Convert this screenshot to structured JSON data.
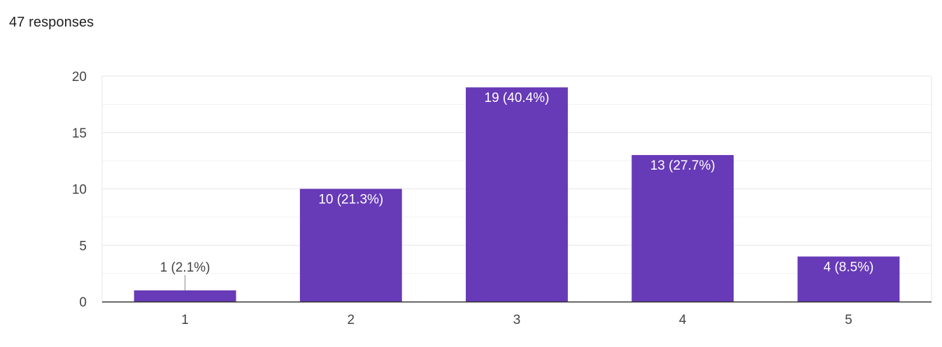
{
  "summary": {
    "responses_label": "47 responses"
  },
  "colors": {
    "bar": "#673ab7",
    "label_inside": "#ffffff",
    "label_outside": "#444444",
    "gridline": "#f1f1f1",
    "gridline_major": "#e6e6e6",
    "axis": "#333333"
  },
  "chart_data": {
    "type": "bar",
    "title": "",
    "xlabel": "",
    "ylabel": "",
    "categories": [
      "1",
      "2",
      "3",
      "4",
      "5"
    ],
    "values": [
      1,
      10,
      19,
      13,
      4
    ],
    "data_labels": [
      "1 (2.1%)",
      "10 (21.3%)",
      "19 (40.4%)",
      "13 (27.7%)",
      "4 (8.5%)"
    ],
    "ylim": [
      0,
      20
    ],
    "yticks": [
      0,
      5,
      10,
      15,
      20
    ],
    "minor_gridlines": true,
    "legend": "none"
  }
}
